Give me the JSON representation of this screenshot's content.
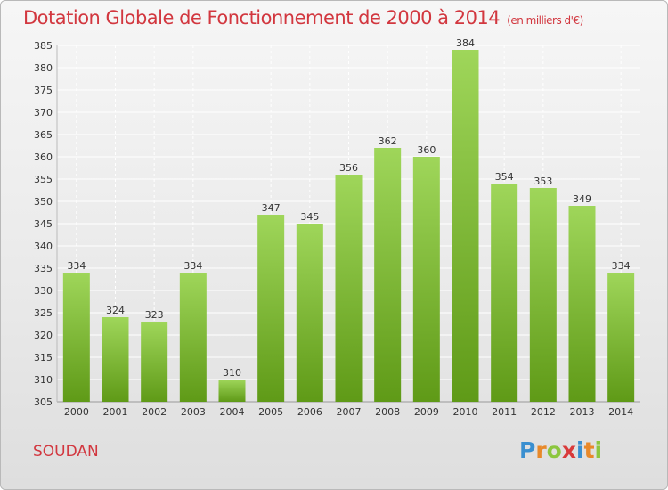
{
  "chart_data": {
    "type": "bar",
    "title": "Dotation Globale de Fonctionnement de 2000 à 2014",
    "unit_note": "(en milliers d'€)",
    "categories": [
      "2000",
      "2001",
      "2002",
      "2003",
      "2004",
      "2005",
      "2006",
      "2007",
      "2008",
      "2009",
      "2010",
      "2011",
      "2012",
      "2013",
      "2014"
    ],
    "values": [
      334,
      324,
      323,
      334,
      310,
      347,
      345,
      356,
      362,
      360,
      384,
      354,
      353,
      349,
      334
    ],
    "ylim": [
      305,
      385
    ],
    "yticks": [
      305,
      310,
      315,
      320,
      325,
      330,
      335,
      340,
      345,
      350,
      355,
      360,
      365,
      370,
      375,
      380,
      385
    ],
    "grid": true,
    "bar_color_top": "#9fd65a",
    "bar_color_bottom": "#5f9a17"
  },
  "commune": "SOUDAN",
  "logo": {
    "parts": [
      "P",
      "r",
      "o",
      "x",
      "i",
      "t",
      "i"
    ]
  },
  "colors": {
    "title": "#d2373f",
    "grid": "#ffffff"
  }
}
